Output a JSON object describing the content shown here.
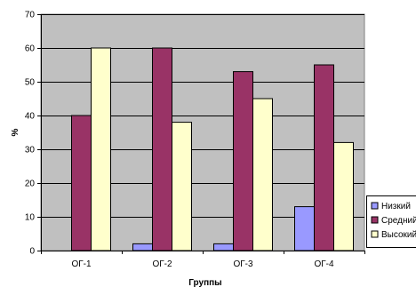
{
  "chart_data": {
    "type": "bar",
    "categories": [
      "ОГ-1",
      "ОГ-2",
      "ОГ-3",
      "ОГ-4"
    ],
    "series": [
      {
        "name": "Низкий",
        "values": [
          0,
          2,
          2,
          13
        ],
        "color": "#9999ff"
      },
      {
        "name": "Средний",
        "values": [
          40,
          60,
          53,
          55
        ],
        "color": "#993366"
      },
      {
        "name": "Высокий",
        "values": [
          60,
          38,
          45,
          32
        ],
        "color": "#ffffcc"
      }
    ],
    "xlabel": "Группы",
    "ylabel": "%",
    "ylim": [
      0,
      70
    ],
    "yticks": [
      0,
      10,
      20,
      30,
      40,
      50,
      60,
      70
    ],
    "grid": true,
    "legend_position": "bottom-right",
    "plot_background": "#c0c0c0"
  }
}
